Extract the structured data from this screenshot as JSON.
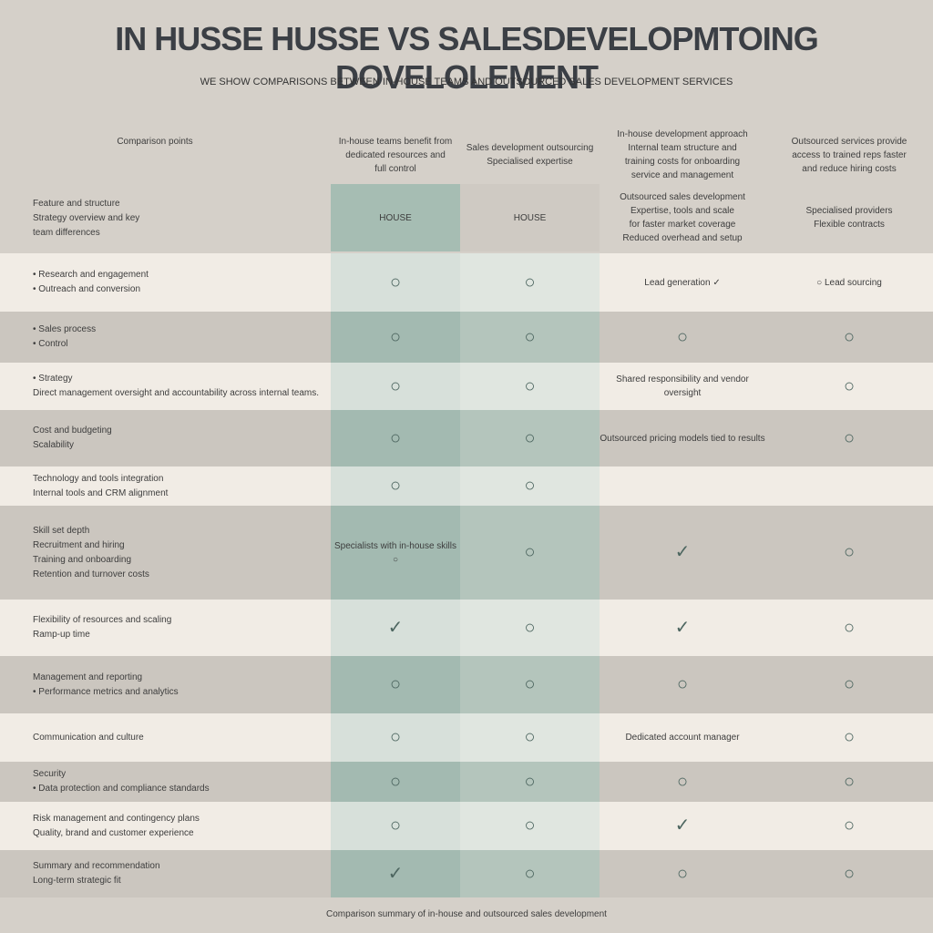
{
  "header": {
    "title": "IN HUSSE HUSSE VS SALESDEVELOPMTOING DOVELOLEMENT",
    "subtitle": "WE SHOW COMPARISONS BETWEEN IN-HOUSE TEAMS AND OUTSOURCED SALES DEVELOPMENT SERVICES"
  },
  "table": {
    "corner": "Comparison points",
    "columns": [
      {
        "top": [
          "In-house teams benefit from",
          "dedicated resources and",
          "full control"
        ],
        "badge": "HOUSE"
      },
      {
        "top": [
          "Sales development outsourcing",
          "Specialised expertise"
        ],
        "badge": "HOUSE"
      },
      {
        "top": [
          "In-house development approach",
          "Internal team structure and",
          "training costs for onboarding",
          "service and management"
        ],
        "badge": [
          "Outsourced sales development",
          "Expertise, tools and scale",
          "for faster market coverage",
          "Reduced overhead and setup"
        ]
      },
      {
        "top": [
          "Outsourced services provide",
          "access to trained reps faster",
          "and reduce hiring costs"
        ],
        "badge": [
          "Specialised providers",
          "Flexible contracts"
        ]
      }
    ],
    "side": [
      "Feature and structure",
      "Strategy overview and key",
      "team differences"
    ],
    "rows": [
      {
        "label": [
          "• Research and engagement",
          "• Outreach and conversion"
        ],
        "cells": [
          "○",
          "○",
          "Lead generation ✓",
          "○ Lead sourcing"
        ]
      },
      {
        "label": [
          "• Sales process",
          "• Control"
        ],
        "cells": [
          "○",
          "○",
          "○",
          "○"
        ]
      },
      {
        "label": [
          "• Strategy",
          "Direct management oversight and accountability across internal teams."
        ],
        "cells": [
          "○",
          "○",
          "Shared responsibility and vendor oversight",
          "○"
        ]
      },
      {
        "label": [
          "Cost and budgeting",
          "Scalability"
        ],
        "cells": [
          "○",
          "○",
          "Outsourced pricing models tied to results",
          "○"
        ]
      },
      {
        "label": [
          "Technology and tools integration",
          "Internal tools and CRM alignment"
        ],
        "cells": [
          "○",
          "○",
          "",
          ""
        ]
      },
      {
        "label": [
          "Skill set depth",
          "Recruitment and hiring",
          "Training and onboarding",
          "Retention and turnover costs"
        ],
        "cells": [
          "Specialists with in-house skills ○",
          "○",
          "✓",
          "○"
        ]
      },
      {
        "label": [
          "Flexibility of resources and scaling",
          "Ramp-up time"
        ],
        "cells": [
          "✓",
          "○",
          "✓",
          "○"
        ]
      },
      {
        "label": [
          "Management and reporting",
          "• Performance metrics and analytics"
        ],
        "cells": [
          "○",
          "○",
          "○",
          "○"
        ]
      },
      {
        "label": [
          "Communication and culture"
        ],
        "cells": [
          "○",
          "○",
          "Dedicated account manager",
          "○"
        ]
      },
      {
        "label": [
          "Security",
          "• Data protection and compliance standards"
        ],
        "cells": [
          "○",
          "○",
          "○",
          "○"
        ]
      },
      {
        "label": [
          "Risk management and contingency plans",
          "Quality, brand and customer experience"
        ],
        "cells": [
          "○",
          "○",
          "✓",
          "○"
        ]
      },
      {
        "label": [
          "Summary and recommendation",
          "Long-term strategic fit"
        ],
        "cells": [
          "✓",
          "○",
          "○",
          "○"
        ]
      }
    ]
  },
  "footer": "Comparison summary of in-house and outsourced sales development"
}
